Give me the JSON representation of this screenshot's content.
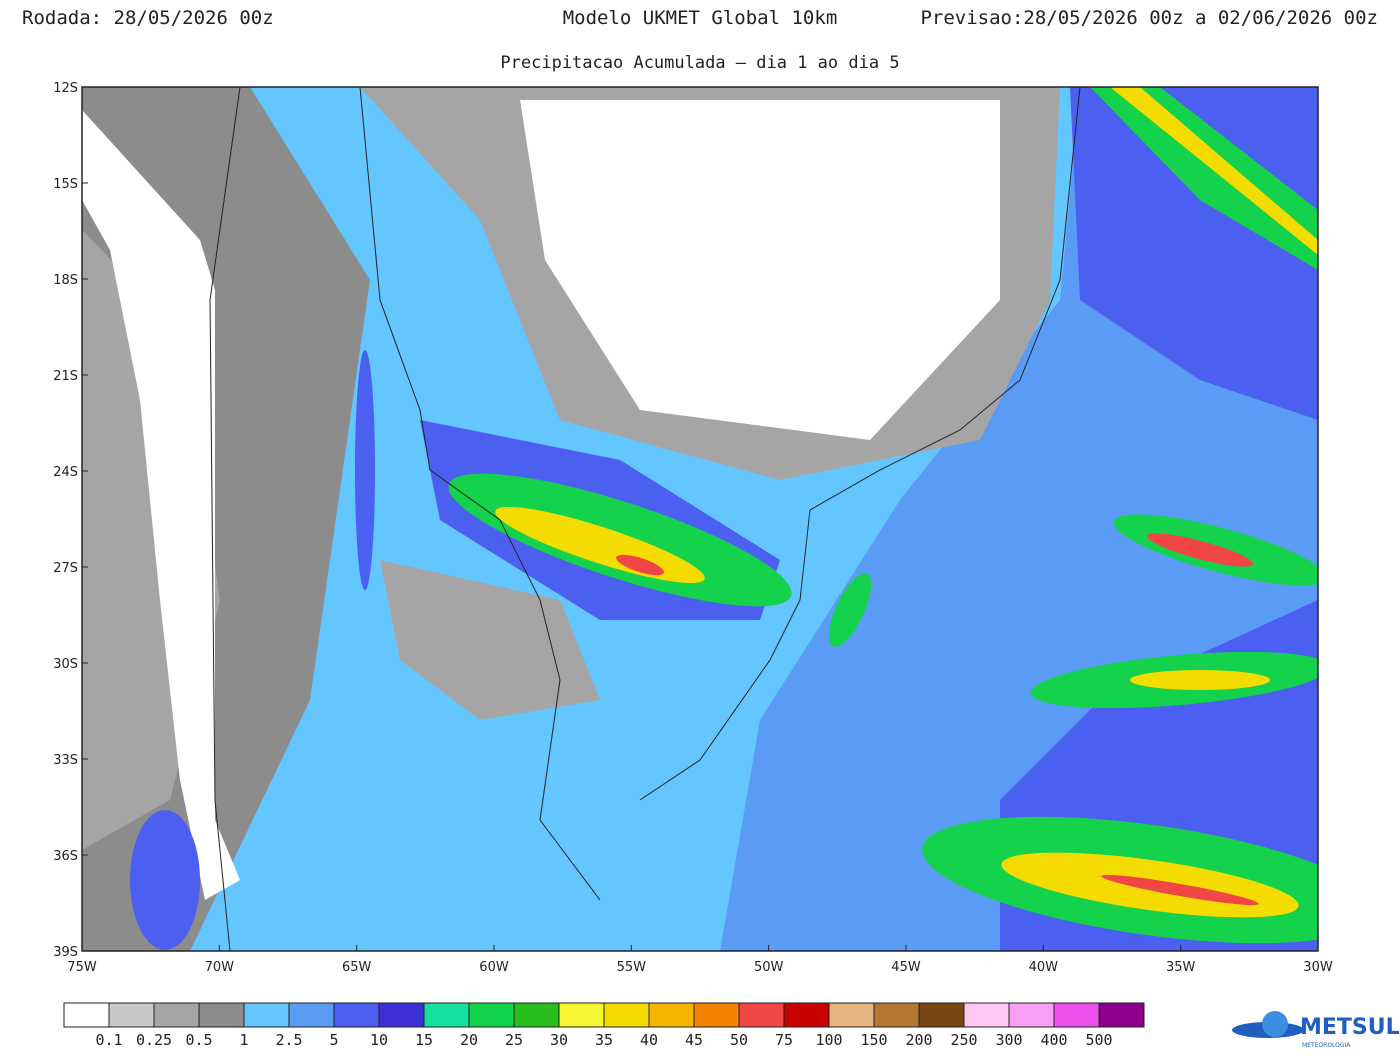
{
  "header": {
    "run": "Rodada: 28/05/2026 00z",
    "model": "Modelo UKMET Global 10km",
    "forecast": "Previsao:28/05/2026 00z a 02/06/2026 00z",
    "subtitle": "Precipitacao Acumulada – dia 1 ao dia 5"
  },
  "map": {
    "lat_labels": [
      "12S",
      "15S",
      "18S",
      "21S",
      "24S",
      "27S",
      "30S",
      "33S",
      "36S",
      "39S"
    ],
    "lon_labels": [
      "75W",
      "70W",
      "65W",
      "60W",
      "55W",
      "50W",
      "45W",
      "40W",
      "35W",
      "30W"
    ]
  },
  "colorbar": {
    "colors": [
      "#ffffff",
      "#c8c8c8",
      "#a5a5a5",
      "#8c8c8c",
      "#63c6ff",
      "#5a9cf5",
      "#4b5ff0",
      "#3c2fd6",
      "#14e1a0",
      "#14d24b",
      "#28be1e",
      "#f5f532",
      "#f5dc00",
      "#f5b400",
      "#f58200",
      "#f04646",
      "#c80000",
      "#e6b482",
      "#b47832",
      "#784614",
      "#ffc8f5",
      "#f5a0f5",
      "#eb50eb",
      "#8c008c"
    ],
    "labels": [
      0.1,
      0.25,
      0.5,
      1,
      2.5,
      5,
      10,
      15,
      20,
      25,
      30,
      35,
      40,
      45,
      50,
      75,
      100,
      150,
      200,
      250,
      300,
      400,
      500
    ]
  },
  "logo": {
    "name": "METSUL",
    "tagline": "METEOROLOGIA"
  }
}
